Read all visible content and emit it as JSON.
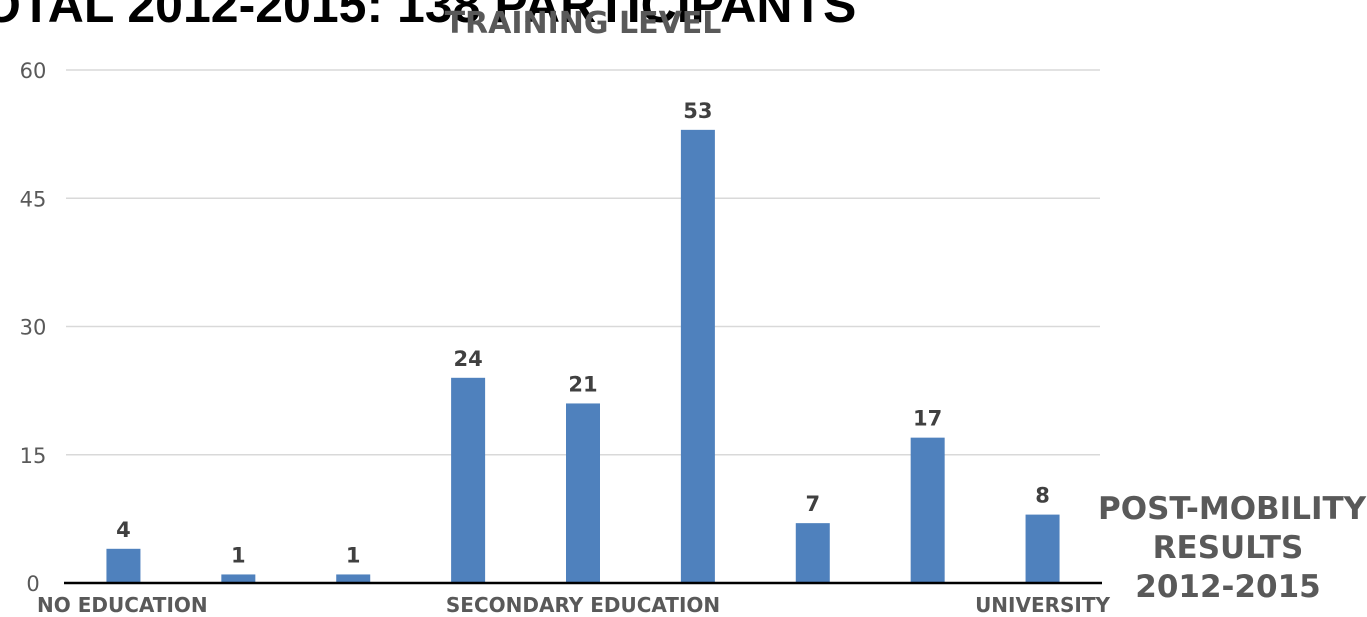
{
  "headline": "OTAL 2012-2015: 138 PARTICIPANTS",
  "side_title": {
    "line1": "POST-MOBILITY",
    "line2": "RESULTS",
    "line3": "2012-2015"
  },
  "colors": {
    "bar": "#4F81BD",
    "grid": "#D9D9D9",
    "axis": "#000000",
    "text": "#595959"
  },
  "chart_data": {
    "type": "bar",
    "title": "TRAINING LEVEL",
    "categories": [
      "NO EDUCATION",
      "",
      "",
      "",
      "SECONDARY EDUCATION",
      "",
      "",
      "",
      "UNIVERSITY"
    ],
    "values": [
      4,
      1,
      1,
      24,
      21,
      53,
      7,
      17,
      8
    ],
    "ylim": [
      0,
      60
    ],
    "yticks": [
      0,
      15,
      30,
      45,
      60
    ],
    "grid": true,
    "legend": "none"
  }
}
